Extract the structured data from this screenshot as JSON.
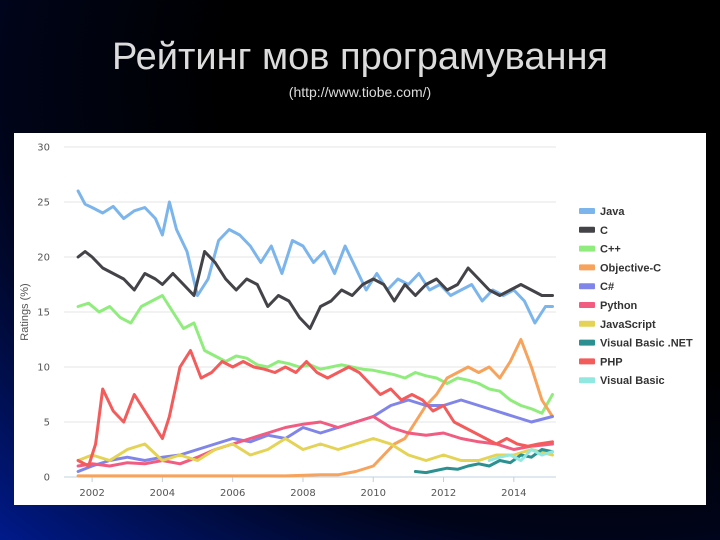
{
  "slide": {
    "title": "Рейтинг мов програмування",
    "subtitle": "(http://www.tiobe.com/)"
  },
  "chart_data": {
    "type": "line",
    "ylabel": "Ratings (%)",
    "ylim": [
      0,
      30
    ],
    "xlim": [
      2001.2,
      2015.2
    ],
    "y_ticks": [
      0,
      5,
      10,
      15,
      20,
      25,
      30
    ],
    "x_ticks": [
      2002,
      2004,
      2006,
      2008,
      2010,
      2012,
      2014
    ],
    "grid": true,
    "legend_position": "right",
    "series": [
      {
        "name": "Java",
        "color": "#7cb5ec",
        "x": [
          2001.6,
          2001.8,
          2002.0,
          2002.3,
          2002.6,
          2002.9,
          2003.2,
          2003.5,
          2003.8,
          2004.0,
          2004.2,
          2004.4,
          2004.7,
          2005.0,
          2005.3,
          2005.6,
          2005.9,
          2006.2,
          2006.5,
          2006.8,
          2007.1,
          2007.4,
          2007.7,
          2008.0,
          2008.3,
          2008.6,
          2008.9,
          2009.2,
          2009.5,
          2009.8,
          2010.1,
          2010.4,
          2010.7,
          2011.0,
          2011.3,
          2011.6,
          2011.9,
          2012.2,
          2012.5,
          2012.8,
          2013.1,
          2013.4,
          2013.7,
          2014.0,
          2014.3,
          2014.6,
          2014.9,
          2015.1
        ],
        "y": [
          26.0,
          24.8,
          24.5,
          24.0,
          24.6,
          23.5,
          24.2,
          24.5,
          23.5,
          22.0,
          25.0,
          22.5,
          20.5,
          16.5,
          18.0,
          21.5,
          22.5,
          22.0,
          21.0,
          19.5,
          21.0,
          18.5,
          21.5,
          21.0,
          19.5,
          20.5,
          18.5,
          21.0,
          19.0,
          17.0,
          18.5,
          17.0,
          18.0,
          17.5,
          18.5,
          17.0,
          17.5,
          16.5,
          17.0,
          17.5,
          16.0,
          17.0,
          16.5,
          17.0,
          16.0,
          14.0,
          15.5,
          15.5
        ]
      },
      {
        "name": "C",
        "color": "#434348",
        "x": [
          2001.6,
          2001.8,
          2002.0,
          2002.3,
          2002.6,
          2002.9,
          2003.2,
          2003.5,
          2003.8,
          2004.0,
          2004.3,
          2004.6,
          2004.9,
          2005.2,
          2005.5,
          2005.8,
          2006.1,
          2006.4,
          2006.7,
          2007.0,
          2007.3,
          2007.6,
          2007.9,
          2008.2,
          2008.5,
          2008.8,
          2009.1,
          2009.4,
          2009.7,
          2010.0,
          2010.3,
          2010.6,
          2010.9,
          2011.2,
          2011.5,
          2011.8,
          2012.1,
          2012.4,
          2012.7,
          2013.0,
          2013.3,
          2013.6,
          2013.9,
          2014.2,
          2014.5,
          2014.8,
          2015.1
        ],
        "y": [
          20.0,
          20.5,
          20.0,
          19.0,
          18.5,
          18.0,
          17.0,
          18.5,
          18.0,
          17.5,
          18.5,
          17.5,
          16.5,
          20.5,
          19.5,
          18.0,
          17.0,
          18.0,
          17.5,
          15.5,
          16.5,
          16.0,
          14.5,
          13.5,
          15.5,
          16.0,
          17.0,
          16.5,
          17.5,
          18.0,
          17.5,
          16.0,
          17.5,
          16.5,
          17.5,
          18.0,
          17.0,
          17.5,
          19.0,
          18.0,
          17.0,
          16.5,
          17.0,
          17.5,
          17.0,
          16.5,
          16.5
        ]
      },
      {
        "name": "C++",
        "color": "#90ed7d",
        "x": [
          2001.6,
          2001.9,
          2002.2,
          2002.5,
          2002.8,
          2003.1,
          2003.4,
          2003.7,
          2004.0,
          2004.3,
          2004.6,
          2004.9,
          2005.2,
          2005.5,
          2005.8,
          2006.1,
          2006.4,
          2006.7,
          2007.0,
          2007.3,
          2007.6,
          2007.9,
          2008.2,
          2008.5,
          2008.8,
          2009.1,
          2009.4,
          2009.7,
          2010.0,
          2010.3,
          2010.6,
          2010.9,
          2011.2,
          2011.5,
          2011.8,
          2012.1,
          2012.4,
          2012.7,
          2013.0,
          2013.3,
          2013.6,
          2013.9,
          2014.2,
          2014.5,
          2014.8,
          2015.1
        ],
        "y": [
          15.5,
          15.8,
          15.0,
          15.5,
          14.5,
          14.0,
          15.5,
          16.0,
          16.5,
          15.0,
          13.5,
          14.0,
          11.5,
          11.0,
          10.5,
          11.0,
          10.8,
          10.2,
          10.0,
          10.5,
          10.3,
          10.0,
          10.2,
          9.8,
          10.0,
          10.2,
          10.0,
          9.8,
          9.7,
          9.5,
          9.3,
          9.0,
          9.5,
          9.2,
          9.0,
          8.5,
          9.0,
          8.8,
          8.5,
          8.0,
          7.8,
          7.0,
          6.5,
          6.2,
          5.8,
          7.5
        ]
      },
      {
        "name": "Objective-C",
        "color": "#f7a35c",
        "x": [
          2001.6,
          2002.5,
          2003.5,
          2004.5,
          2005.5,
          2006.5,
          2007.5,
          2008.5,
          2009.0,
          2009.5,
          2010.0,
          2010.3,
          2010.6,
          2010.9,
          2011.2,
          2011.5,
          2011.8,
          2012.1,
          2012.4,
          2012.7,
          2013.0,
          2013.3,
          2013.6,
          2013.9,
          2014.2,
          2014.5,
          2014.8,
          2015.1
        ],
        "y": [
          0.1,
          0.1,
          0.1,
          0.1,
          0.1,
          0.1,
          0.1,
          0.2,
          0.2,
          0.5,
          1.0,
          2.0,
          3.0,
          3.5,
          5.0,
          6.5,
          7.5,
          9.0,
          9.5,
          10.0,
          9.5,
          10.0,
          9.0,
          10.5,
          12.5,
          10.0,
          7.0,
          5.5
        ]
      },
      {
        "name": "C#",
        "color": "#8085e9",
        "x": [
          2001.6,
          2002.0,
          2002.5,
          2003.0,
          2003.5,
          2004.0,
          2004.5,
          2005.0,
          2005.5,
          2006.0,
          2006.5,
          2007.0,
          2007.5,
          2008.0,
          2008.5,
          2009.0,
          2009.5,
          2010.0,
          2010.5,
          2011.0,
          2011.5,
          2012.0,
          2012.5,
          2013.0,
          2013.5,
          2014.0,
          2014.5,
          2015.1
        ],
        "y": [
          0.5,
          1.0,
          1.5,
          1.8,
          1.5,
          1.8,
          2.0,
          2.5,
          3.0,
          3.5,
          3.2,
          3.8,
          3.5,
          4.5,
          4.0,
          4.5,
          5.0,
          5.5,
          6.5,
          7.0,
          6.5,
          6.5,
          7.0,
          6.5,
          6.0,
          5.5,
          5.0,
          5.5
        ]
      },
      {
        "name": "Python",
        "color": "#f15c80",
        "x": [
          2001.6,
          2002.0,
          2002.5,
          2003.0,
          2003.5,
          2004.0,
          2004.5,
          2005.0,
          2005.5,
          2006.0,
          2006.5,
          2007.0,
          2007.5,
          2008.0,
          2008.5,
          2009.0,
          2009.5,
          2010.0,
          2010.5,
          2011.0,
          2011.5,
          2012.0,
          2012.5,
          2013.0,
          2013.5,
          2014.0,
          2014.5,
          2015.1
        ],
        "y": [
          1.0,
          1.2,
          1.0,
          1.3,
          1.2,
          1.5,
          1.2,
          1.8,
          2.5,
          3.0,
          3.5,
          4.0,
          4.5,
          4.8,
          5.0,
          4.5,
          5.0,
          5.5,
          4.5,
          4.0,
          3.8,
          4.0,
          3.5,
          3.2,
          3.0,
          2.5,
          2.8,
          3.0
        ]
      },
      {
        "name": "JavaScript",
        "color": "#e4d354",
        "x": [
          2001.6,
          2002.0,
          2002.5,
          2003.0,
          2003.5,
          2004.0,
          2004.5,
          2005.0,
          2005.5,
          2006.0,
          2006.5,
          2007.0,
          2007.5,
          2008.0,
          2008.5,
          2009.0,
          2009.5,
          2010.0,
          2010.5,
          2011.0,
          2011.5,
          2012.0,
          2012.5,
          2013.0,
          2013.5,
          2014.0,
          2014.5,
          2015.1
        ],
        "y": [
          1.5,
          2.0,
          1.5,
          2.5,
          3.0,
          1.5,
          2.0,
          1.5,
          2.5,
          3.0,
          2.0,
          2.5,
          3.5,
          2.5,
          3.0,
          2.5,
          3.0,
          3.5,
          3.0,
          2.0,
          1.5,
          2.0,
          1.5,
          1.5,
          2.0,
          2.0,
          2.5,
          2.0
        ]
      },
      {
        "name": "Visual Basic .NET",
        "color": "#2b908f",
        "x": [
          2011.2,
          2011.5,
          2011.8,
          2012.1,
          2012.4,
          2012.7,
          2013.0,
          2013.3,
          2013.6,
          2013.9,
          2014.2,
          2014.5,
          2014.8,
          2015.1
        ],
        "y": [
          0.5,
          0.4,
          0.6,
          0.8,
          0.7,
          1.0,
          1.2,
          1.0,
          1.5,
          1.3,
          2.0,
          1.8,
          2.5,
          2.3
        ]
      },
      {
        "name": "PHP",
        "color": "#f45b5b",
        "x": [
          2001.6,
          2001.9,
          2002.1,
          2002.3,
          2002.6,
          2002.9,
          2003.2,
          2003.5,
          2003.8,
          2004.0,
          2004.2,
          2004.5,
          2004.8,
          2005.1,
          2005.4,
          2005.7,
          2006.0,
          2006.3,
          2006.6,
          2006.9,
          2007.2,
          2007.5,
          2007.8,
          2008.1,
          2008.4,
          2008.7,
          2009.0,
          2009.3,
          2009.6,
          2009.9,
          2010.2,
          2010.5,
          2010.8,
          2011.1,
          2011.4,
          2011.7,
          2012.0,
          2012.3,
          2012.6,
          2012.9,
          2013.2,
          2013.5,
          2013.8,
          2014.1,
          2014.4,
          2014.7,
          2015.1
        ],
        "y": [
          1.5,
          1.0,
          3.0,
          8.0,
          6.0,
          5.0,
          7.5,
          6.0,
          4.5,
          3.5,
          5.5,
          10.0,
          11.5,
          9.0,
          9.5,
          10.5,
          10.0,
          10.5,
          10.0,
          9.8,
          9.5,
          10.0,
          9.5,
          10.5,
          9.5,
          9.0,
          9.5,
          10.0,
          9.5,
          8.5,
          7.5,
          8.0,
          7.0,
          7.5,
          7.0,
          6.0,
          6.5,
          5.0,
          4.5,
          4.0,
          3.5,
          3.0,
          3.5,
          3.0,
          2.8,
          3.0,
          3.2
        ]
      },
      {
        "name": "Visual Basic",
        "color": "#91e8e1",
        "x": [
          2013.3,
          2013.6,
          2013.9,
          2014.2,
          2014.5,
          2014.8,
          2015.1
        ],
        "y": [
          1.5,
          1.8,
          2.0,
          1.5,
          2.5,
          2.0,
          2.3
        ]
      }
    ]
  }
}
